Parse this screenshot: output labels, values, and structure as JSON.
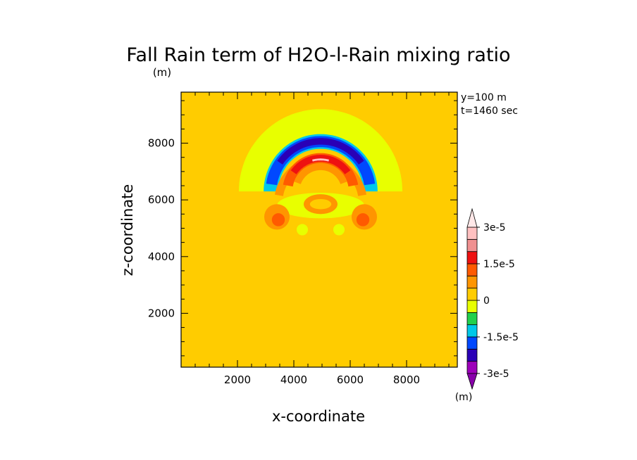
{
  "chart_data": {
    "type": "heatmap",
    "title": "Fall Rain term of H2O-l-Rain mixing ratio",
    "unit_top": "(m)",
    "unit_colorbar": "(m)",
    "xlabel": "x-coordinate",
    "ylabel": "z-coordinate",
    "info_lines": [
      "y=100 m",
      "t=1460 sec"
    ],
    "xlim": [
      0,
      9800
    ],
    "ylim": [
      100,
      9800
    ],
    "xticks": [
      2000,
      4000,
      6000,
      8000
    ],
    "yticks": [
      2000,
      4000,
      6000,
      8000
    ],
    "background_level": 0,
    "colorbar": {
      "colors": [
        "#9d00ba",
        "#2a00b6",
        "#0048ff",
        "#00c8e8",
        "#22d04c",
        "#e8ff00",
        "#ffcc00",
        "#ff9500",
        "#ff5a00",
        "#ee1111",
        "#f09090",
        "#ffc0c0"
      ],
      "min": -3e-05,
      "max": 3e-05,
      "labels": [
        {
          "value": 3e-05,
          "text": "3e-5"
        },
        {
          "value": 1.5e-05,
          "text": "1.5e-5"
        },
        {
          "value": 0,
          "text": "0"
        },
        {
          "value": -1.5e-05,
          "text": "-1.5e-5"
        },
        {
          "value": -3e-05,
          "text": "-3e-5"
        }
      ]
    },
    "features": [
      {
        "kind": "arc",
        "color": "#e8ff00",
        "cx": 4950,
        "cz": 6300,
        "r_in": 1500,
        "r_out": 2900,
        "a0": 0,
        "a1": 180
      },
      {
        "kind": "arc",
        "color": "#00c8e8",
        "cx": 4950,
        "cz": 6300,
        "r_in": 1500,
        "r_out": 2020,
        "a0": 0,
        "a1": 180
      },
      {
        "kind": "arc",
        "color": "#0048ff",
        "cx": 4950,
        "cz": 6300,
        "r_in": 1560,
        "r_out": 1950,
        "a0": 8,
        "a1": 172
      },
      {
        "kind": "arc",
        "color": "#2a00b6",
        "cx": 4950,
        "cz": 6300,
        "r_in": 1650,
        "r_out": 1880,
        "a0": 35,
        "a1": 145
      },
      {
        "kind": "arc",
        "color": "#ff9500",
        "cx": 4950,
        "cz": 5900,
        "r_in": 1350,
        "r_out": 1650,
        "a0": 10,
        "a1": 170
      },
      {
        "kind": "arc",
        "color": "#ff5a00",
        "cx": 4950,
        "cz": 6300,
        "r_in": 1000,
        "r_out": 1350,
        "a0": 10,
        "a1": 170
      },
      {
        "kind": "arc",
        "color": "#ee1111",
        "cx": 4950,
        "cz": 6300,
        "r_in": 1050,
        "r_out": 1290,
        "a0": 35,
        "a1": 145
      },
      {
        "kind": "arc",
        "color": "#ff9500",
        "cx": 4950,
        "cz": 6300,
        "r_in": 750,
        "r_out": 1000,
        "a0": 20,
        "a1": 160
      },
      {
        "kind": "arc",
        "color": "#ffc0c0",
        "cx": 4950,
        "cz": 6300,
        "r_in": 1090,
        "r_out": 1160,
        "a0": 75,
        "a1": 105
      },
      {
        "kind": "ellipse",
        "color": "#ffcc00",
        "cx": 4950,
        "cz": 5300,
        "rx": 2100,
        "rz": 900
      },
      {
        "kind": "ellipse",
        "color": "#e8ff00",
        "cx": 4950,
        "cz": 5800,
        "rx": 1550,
        "rz": 450
      },
      {
        "kind": "ellipse",
        "color": "#ff9500",
        "cx": 4950,
        "cz": 5850,
        "rx": 600,
        "rz": 350
      },
      {
        "kind": "ellipse",
        "color": "#ffcc00",
        "cx": 4950,
        "cz": 5850,
        "rx": 380,
        "rz": 180
      },
      {
        "kind": "ellipse",
        "color": "#ff9500",
        "cx": 3400,
        "cz": 5400,
        "rx": 450,
        "rz": 450
      },
      {
        "kind": "ellipse",
        "color": "#ff5a00",
        "cx": 3450,
        "cz": 5300,
        "rx": 230,
        "rz": 230
      },
      {
        "kind": "ellipse",
        "color": "#ff9500",
        "cx": 6500,
        "cz": 5400,
        "rx": 450,
        "rz": 450
      },
      {
        "kind": "ellipse",
        "color": "#ff5a00",
        "cx": 6450,
        "cz": 5300,
        "rx": 230,
        "rz": 230
      },
      {
        "kind": "ellipse",
        "color": "#e8ff00",
        "cx": 4300,
        "cz": 4950,
        "rx": 200,
        "rz": 200
      },
      {
        "kind": "ellipse",
        "color": "#e8ff00",
        "cx": 5600,
        "cz": 4950,
        "rx": 200,
        "rz": 200
      }
    ]
  }
}
